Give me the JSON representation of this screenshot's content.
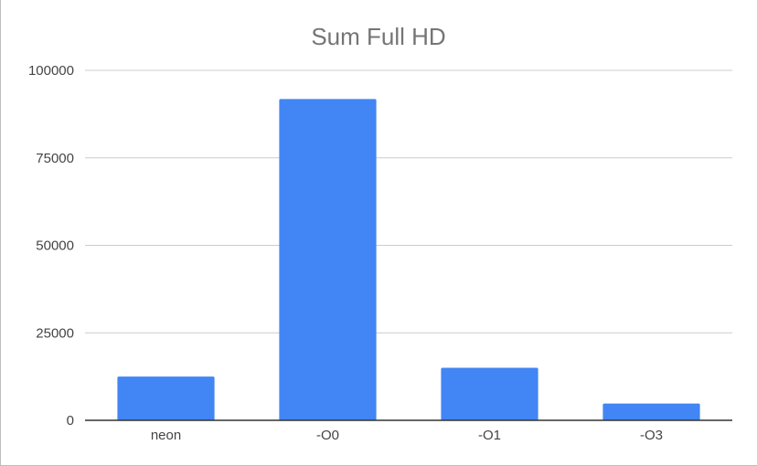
{
  "chart_data": {
    "type": "bar",
    "title": "Sum Full HD",
    "xlabel": "",
    "ylabel": "",
    "categories": [
      "neon",
      "-O0",
      "-O1",
      "-O3"
    ],
    "values": [
      12500,
      91800,
      15000,
      4800
    ],
    "ylim": [
      0,
      100000
    ],
    "yticks": [
      0,
      25000,
      50000,
      75000,
      100000
    ],
    "bar_color": "#4285f4",
    "grid": true,
    "legend": "none"
  }
}
